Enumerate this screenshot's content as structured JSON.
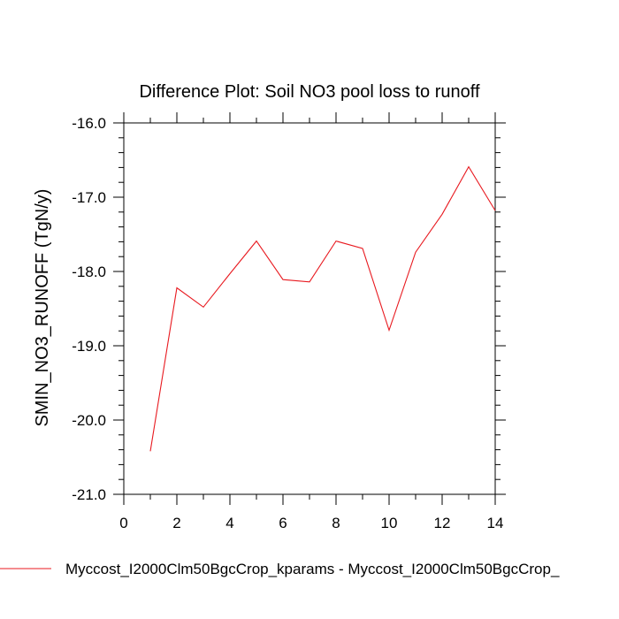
{
  "chart_data": {
    "type": "line",
    "title": "Difference Plot: Soil NO3 pool loss to runoff",
    "xlabel": "",
    "ylabel": "SMIN_NO3_RUNOFF  (TgN/y)",
    "xlim": [
      0,
      14
    ],
    "ylim": [
      -21.0,
      -16.0
    ],
    "x_ticks": [
      0,
      2,
      4,
      6,
      8,
      10,
      12,
      14
    ],
    "y_ticks": [
      -21.0,
      -20.0,
      -19.0,
      -18.0,
      -17.0,
      -16.0
    ],
    "x_tick_labels": [
      "0",
      "2",
      "4",
      "6",
      "8",
      "10",
      "12",
      "14"
    ],
    "y_tick_labels": [
      "-21.0",
      "-20.0",
      "-19.0",
      "-18.0",
      "-17.0",
      "-16.0"
    ],
    "grid": false,
    "legend_position": "bottom-left",
    "series": [
      {
        "name": "Myccost_I2000Clm50BgcCrop_kparams - Myccost_I2000Clm50BgcCrop_",
        "color": "#e8191f",
        "x": [
          1,
          2,
          3,
          4,
          5,
          6,
          7,
          8,
          9,
          10,
          11,
          12,
          13,
          14
        ],
        "values": [
          -20.42,
          -18.22,
          -18.48,
          -18.03,
          -17.59,
          -18.11,
          -18.14,
          -17.59,
          -17.69,
          -18.79,
          -17.74,
          -17.23,
          -16.59,
          -17.18
        ]
      }
    ]
  }
}
